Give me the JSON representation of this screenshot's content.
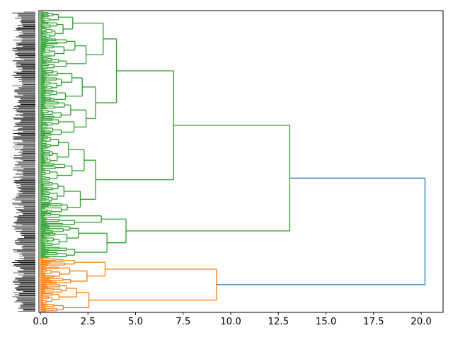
{
  "window": {
    "title": ""
  },
  "chart_data": {
    "type": "dendrogram",
    "orientation": "horizontal_roots_right",
    "title": "",
    "xlabel": "",
    "ylabel": "",
    "x_ticks": [
      {
        "value": 0,
        "label": "0.0"
      },
      {
        "value": 2.5,
        "label": "2.5"
      },
      {
        "value": 5,
        "label": "5.0"
      },
      {
        "value": 7.5,
        "label": "7.5"
      },
      {
        "value": 10,
        "label": "10.0"
      },
      {
        "value": 12.5,
        "label": "12.5"
      },
      {
        "value": 15,
        "label": "15.0"
      },
      {
        "value": 17.5,
        "label": "17.5"
      },
      {
        "value": 20,
        "label": "20.0"
      }
    ],
    "xlim": [
      0,
      21.15
    ],
    "grid": false,
    "legend": null,
    "n_leaves": 289,
    "leaf_labels_legible": false,
    "leaf_label_note": "hundreds of tiny leaf labels, too small to read",
    "link_colors": {
      "above_threshold": "#1f77b4",
      "cluster_green": "#2ca02c",
      "cluster_orange": "#ff7f0e"
    },
    "clusters": [
      {
        "name": "green cluster",
        "color": "#2ca02c",
        "n_leaves": 237,
        "top_merge_distance": 13.1
      },
      {
        "name": "orange cluster",
        "color": "#ff7f0e",
        "n_leaves": 52,
        "top_merge_distance": 9.25
      }
    ],
    "root_merge_distance": 20.2,
    "fan_seed": 1337,
    "structure": {
      "d": 20.2,
      "color": "#1f77b4",
      "children": [
        {
          "d": 13.1,
          "color": "#2ca02c",
          "children": [
            {
              "d": 7.0,
              "children": [
                {
                  "d": 4.0,
                  "children": [
                    {
                      "d": 3.3,
                      "children": [
                        {
                          "fan": {
                            "leaves": 26,
                            "d": 1.7
                          }
                        },
                        {
                          "fan": {
                            "leaves": 30,
                            "d": 2.4
                          }
                        }
                      ]
                    },
                    {
                      "d": 2.9,
                      "children": [
                        {
                          "fan": {
                            "leaves": 30,
                            "d": 2.2
                          }
                        },
                        {
                          "fan": {
                            "leaves": 34,
                            "d": 2.4
                          }
                        }
                      ]
                    }
                  ]
                },
                {
                  "d": 2.9,
                  "children": [
                    {
                      "fan": {
                        "leaves": 43,
                        "d": 2.3
                      }
                    },
                    {
                      "fan": {
                        "leaves": 31,
                        "d": 2.1
                      }
                    }
                  ]
                }
              ]
            },
            {
              "d": 4.5,
              "children": [
                {
                  "d": 3.2,
                  "children": [
                    {
                      "fan": {
                        "leaves": 5,
                        "d": 1.0
                      }
                    },
                    {
                      "fan": {
                        "leaves": 7,
                        "d": 1.8
                      }
                    }
                  ]
                },
                {
                  "d": 3.5,
                  "children": [
                    {
                      "fan": {
                        "leaves": 20,
                        "d": 2.0
                      }
                    },
                    {
                      "fan": {
                        "leaves": 11,
                        "d": 1.8
                      }
                    }
                  ]
                }
              ]
            }
          ]
        },
        {
          "d": 9.25,
          "color": "#ff7f0e",
          "children": [
            {
              "d": 3.4,
              "children": [
                {
                  "fan": {
                    "leaves": 8,
                    "d": 1.8
                  }
                },
                {
                  "fan": {
                    "leaves": 17,
                    "d": 2.45
                  }
                }
              ]
            },
            {
              "d": 2.55,
              "children": [
                {
                  "fan": {
                    "leaves": 19,
                    "d": 1.9
                  }
                },
                {
                  "fan": {
                    "leaves": 8,
                    "d": 1.2
                  }
                }
              ]
            }
          ]
        }
      ]
    },
    "axis_style": {
      "frame_color": "#000000",
      "tick_label_color": "#000000"
    }
  }
}
